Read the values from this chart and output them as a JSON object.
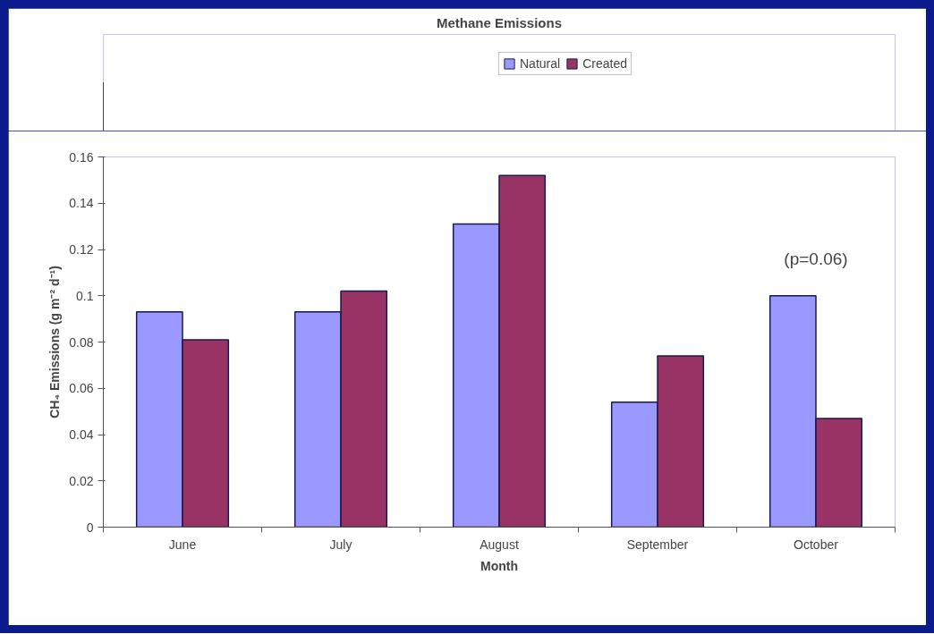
{
  "chart_data": {
    "type": "bar",
    "title": "Methane Emissions",
    "xlabel": "Month",
    "ylabel": "CH₄ Emissions (g m⁻² d⁻¹)",
    "categories": [
      "June",
      "July",
      "August",
      "September",
      "October"
    ],
    "series": [
      {
        "name": "Natural",
        "color": "#9999ff",
        "values": [
          0.093,
          0.093,
          0.131,
          0.054,
          0.1
        ]
      },
      {
        "name": "Created",
        "color": "#993366",
        "values": [
          0.081,
          0.102,
          0.152,
          0.074,
          0.047
        ]
      }
    ],
    "ylim": [
      0,
      0.16
    ],
    "yticks": [
      0,
      0.02,
      0.04,
      0.06,
      0.08,
      0.1,
      0.12,
      0.14,
      0.16
    ],
    "grid": false,
    "legend": "top",
    "annotations": [
      "(p=0.06)"
    ]
  }
}
